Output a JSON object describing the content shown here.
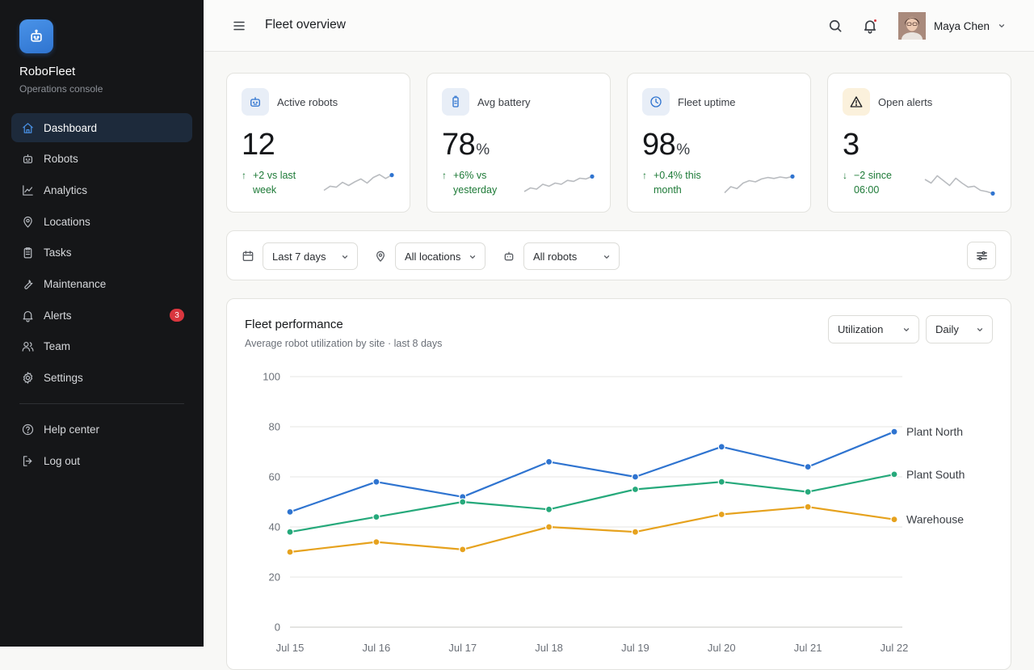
{
  "brand": {
    "name": "RoboFleet",
    "subtitle": "Operations console"
  },
  "sidebar": {
    "items": [
      {
        "id": "dashboard",
        "label": "Dashboard",
        "icon": "home-icon",
        "active": true
      },
      {
        "id": "robots",
        "label": "Robots",
        "icon": "robot-icon"
      },
      {
        "id": "analytics",
        "label": "Analytics",
        "icon": "chart-line-icon"
      },
      {
        "id": "locations",
        "label": "Locations",
        "icon": "map-pin-icon"
      },
      {
        "id": "tasks",
        "label": "Tasks",
        "icon": "clipboard-icon"
      },
      {
        "id": "maintenance",
        "label": "Maintenance",
        "icon": "wrench-icon"
      },
      {
        "id": "alerts",
        "label": "Alerts",
        "icon": "bell-icon",
        "badge": "3"
      },
      {
        "id": "team",
        "label": "Team",
        "icon": "users-icon"
      },
      {
        "id": "settings",
        "label": "Settings",
        "icon": "gear-icon"
      }
    ],
    "footer": [
      {
        "id": "help",
        "label": "Help center",
        "icon": "help-circle-icon"
      },
      {
        "id": "logout",
        "label": "Log out",
        "icon": "logout-icon"
      }
    ]
  },
  "header": {
    "title": "Fleet overview",
    "user_name": "Maya Chen"
  },
  "stats": [
    {
      "label": "Active robots",
      "value": "12",
      "unit": "",
      "delta": "+2 vs last week",
      "direction": "up",
      "icon": "robot-icon",
      "icon_bg": "#e8eef7",
      "icon_color": "#2f74d0",
      "spark": [
        0.25,
        0.42,
        0.38,
        0.58,
        0.45,
        0.6,
        0.72,
        0.55,
        0.78,
        0.9,
        0.74,
        0.88
      ]
    },
    {
      "label": "Avg battery",
      "value": "78",
      "unit": "%",
      "delta": "+6% vs yesterday",
      "direction": "up",
      "icon": "battery-icon",
      "icon_bg": "#e8eef7",
      "icon_color": "#2f74d0",
      "spark": [
        0.2,
        0.35,
        0.3,
        0.5,
        0.42,
        0.55,
        0.5,
        0.66,
        0.62,
        0.75,
        0.72,
        0.82
      ]
    },
    {
      "label": "Fleet uptime",
      "value": "98",
      "unit": "%",
      "delta": "+0.4% this month",
      "direction": "up",
      "icon": "clock-icon",
      "icon_bg": "#e8eef7",
      "icon_color": "#2f74d0",
      "spark": [
        0.15,
        0.4,
        0.32,
        0.55,
        0.65,
        0.6,
        0.72,
        0.78,
        0.74,
        0.8,
        0.76,
        0.82
      ]
    },
    {
      "label": "Open alerts",
      "value": "3",
      "unit": "",
      "delta": "−2 since 06:00",
      "direction": "down",
      "icon": "warning-icon",
      "icon_bg": "#fbf1dc",
      "icon_color": "#1a1d21",
      "spark": [
        0.7,
        0.55,
        0.85,
        0.65,
        0.45,
        0.75,
        0.55,
        0.38,
        0.42,
        0.25,
        0.2,
        0.12
      ]
    }
  ],
  "filters": {
    "date": "Last 7 days",
    "location": "All locations",
    "robots": "All robots"
  },
  "chart_card": {
    "title": "Fleet performance",
    "subtitle": "Average robot utilization by site · last 8 days",
    "metric_select": "Utilization",
    "interval_select": "Daily"
  },
  "colors": {
    "accent": "#2f74d0",
    "series_blue": "#2f74d0",
    "series_green": "#26a97b",
    "series_orange": "#e6a21e",
    "positive": "#1d7a37"
  },
  "chart_data": {
    "type": "line",
    "title": "Fleet performance",
    "subtitle": "Average robot utilization by site · last 8 days",
    "xlabel": "",
    "ylabel": "",
    "ylim": [
      0,
      100
    ],
    "yticks": [
      0,
      20,
      40,
      60,
      80,
      100
    ],
    "grid": true,
    "legend": "end-of-line labels",
    "x": [
      "Jul 15",
      "Jul 16",
      "Jul 17",
      "Jul 18",
      "Jul 19",
      "Jul 20",
      "Jul 21",
      "Jul 22"
    ],
    "series": [
      {
        "name": "Plant North",
        "color": "#2f74d0",
        "values": [
          46,
          58,
          52,
          66,
          60,
          72,
          64,
          78
        ]
      },
      {
        "name": "Plant South",
        "color": "#26a97b",
        "values": [
          38,
          44,
          50,
          47,
          55,
          58,
          54,
          61
        ]
      },
      {
        "name": "Warehouse",
        "color": "#e6a21e",
        "values": [
          30,
          34,
          31,
          40,
          38,
          45,
          48,
          43
        ]
      }
    ]
  }
}
